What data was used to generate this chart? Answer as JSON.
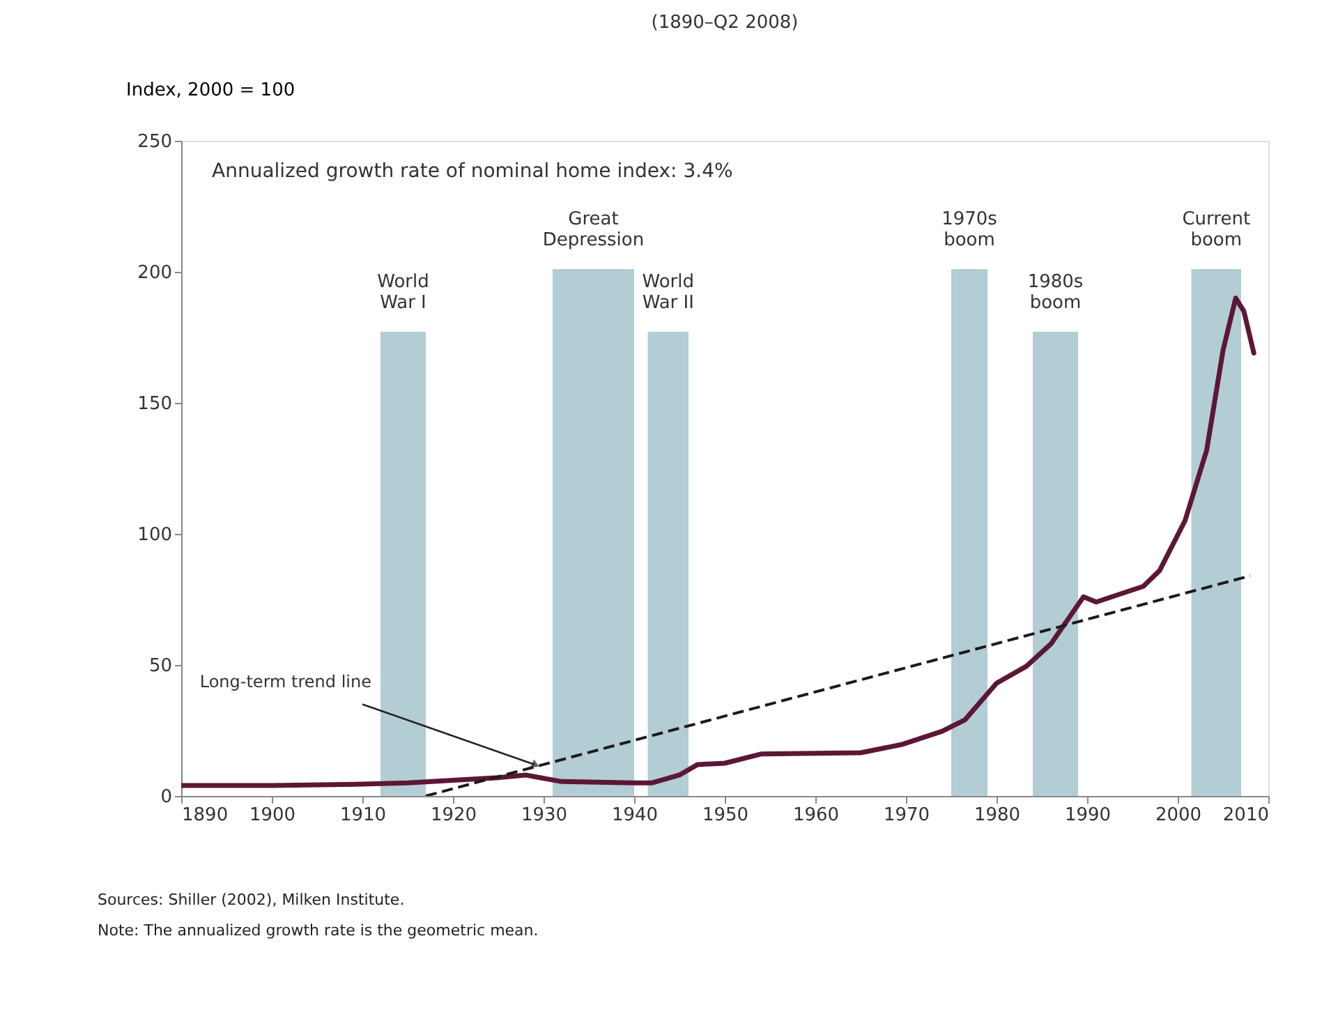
{
  "chart_data": {
    "type": "line",
    "title": "(1890–Q2 2008)",
    "ylabel": "Index, 2000 = 100",
    "x": [
      1890,
      1900,
      1910,
      1915,
      1920,
      1925,
      1928,
      1932,
      1940,
      1942,
      1945,
      1947,
      1950,
      1954,
      1965,
      1969.5,
      1974,
      1976.5,
      1980,
      1983.3,
      1986,
      1989.6,
      1991,
      1996.2,
      1998,
      2000.8,
      2003.2,
      2005,
      2006.4,
      2007.3,
      2008.4
    ],
    "series": [
      {
        "color": "#5c1735",
        "values": [
          4,
          4,
          4.5,
          5,
          6,
          7,
          8,
          5.5,
          5,
          5,
          8,
          12,
          12.5,
          16,
          16.5,
          19.6,
          24.7,
          29,
          43,
          49.5,
          58,
          76,
          74,
          80,
          86,
          105,
          132,
          170,
          190,
          185,
          169
        ]
      },
      {
        "color": "#1a1a1a",
        "line_style": "dashed",
        "x": [
          1917,
          2008
        ],
        "values": [
          0,
          84
        ]
      }
    ],
    "xlim": [
      1890,
      2010
    ],
    "xticks": [
      1890,
      1900,
      1910,
      1920,
      1930,
      1940,
      1950,
      1960,
      1970,
      1980,
      1990,
      2000,
      2010
    ],
    "ylim": [
      0,
      250
    ],
    "yticks": [
      0,
      50,
      100,
      150,
      200,
      250
    ],
    "grid": false,
    "bands": [
      {
        "axis": "x",
        "from": 1912,
        "to": 1917,
        "label": "World\nWar I",
        "color": "#b3cdd5"
      },
      {
        "axis": "x",
        "from": 1931,
        "to": 1940,
        "label": "Great\nDepression",
        "color": "#b3cdd5"
      },
      {
        "axis": "x",
        "from": 1941.5,
        "to": 1946,
        "label": "World\nWar II",
        "color": "#b3cdd5"
      },
      {
        "axis": "x",
        "from": 1975,
        "to": 1979,
        "label": "1970s\nboom",
        "color": "#b3cdd5"
      },
      {
        "axis": "x",
        "from": 1984,
        "to": 1989,
        "label": "1980s\nboom",
        "color": "#b3cdd5"
      },
      {
        "axis": "x",
        "from": 2001.5,
        "to": 2007,
        "label": "Current\nboom",
        "color": "#b3cdd5"
      }
    ],
    "annotations": [
      "Annualized growth rate of nominal home index: 3.4%",
      {
        "text": "Long-term trend line",
        "x": 1929,
        "y": 12
      },
      "Sources: Shiller (2002), Milken Institute.",
      "Note: The annualized growth rate is the geometric mean."
    ]
  }
}
